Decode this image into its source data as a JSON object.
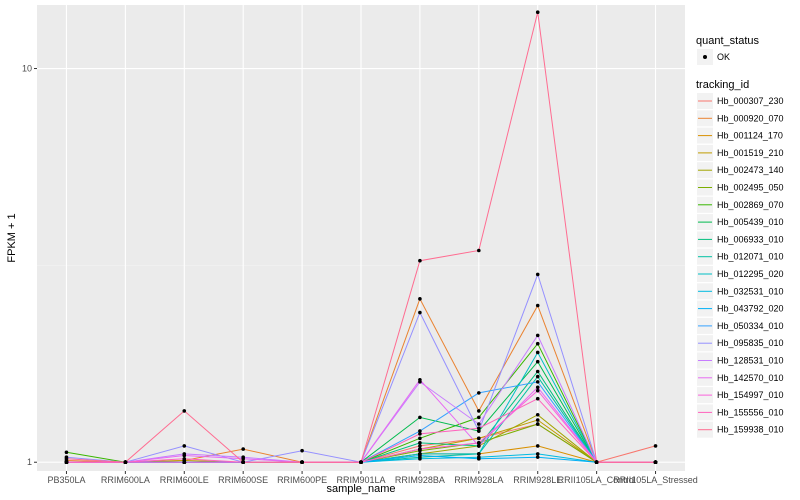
{
  "chart_data": {
    "type": "line",
    "xlabel": "sample_name",
    "ylabel": "FPKM + 1",
    "y_scale": "log",
    "ylim": [
      0.95,
      14.5
    ],
    "y_ticks": [
      1,
      10
    ],
    "y_tick_labels": [
      "1",
      "10"
    ],
    "categories": [
      "PB350LA",
      "RRIM600LA",
      "RRIM600LE",
      "RRIM600SE",
      "RRIM600PE",
      "RRIM901LA",
      "RRIM928BA",
      "RRIM928LA",
      "RRIM928LE",
      "RRII105LA_Control",
      "RRII105LA_Stressed"
    ],
    "grid": true,
    "legend": {
      "position": "right",
      "point_title": "quant_status",
      "point_entries": [
        "OK"
      ],
      "line_title": "tracking_id"
    },
    "series": [
      {
        "name": "Hb_000307_230",
        "color": "#F8766D",
        "values": [
          1.0,
          1.0,
          1.0,
          1.0,
          1.0,
          1.0,
          1.1,
          1.15,
          1.25,
          1.0,
          1.1
        ]
      },
      {
        "name": "Hb_000920_070",
        "color": "#EA8331",
        "values": [
          1.01,
          1.0,
          1.01,
          1.08,
          1.0,
          1.0,
          2.6,
          1.35,
          2.5,
          1.0,
          1.0
        ]
      },
      {
        "name": "Hb_001124_170",
        "color": "#D89000",
        "values": [
          1.0,
          1.0,
          1.0,
          1.0,
          1.0,
          1.0,
          1.05,
          1.05,
          1.1,
          1.0,
          1.0
        ]
      },
      {
        "name": "Hb_001519_210",
        "color": "#C09B00",
        "values": [
          1.0,
          1.0,
          1.01,
          1.0,
          1.0,
          1.0,
          1.08,
          1.15,
          1.28,
          1.0,
          1.0
        ]
      },
      {
        "name": "Hb_002473_140",
        "color": "#A3A500",
        "values": [
          1.0,
          1.0,
          1.0,
          1.0,
          1.0,
          1.0,
          1.05,
          1.1,
          1.32,
          1.0,
          1.0
        ]
      },
      {
        "name": "Hb_002495_050",
        "color": "#7CAE00",
        "values": [
          1.0,
          1.0,
          1.0,
          1.0,
          1.0,
          1.0,
          1.07,
          1.12,
          1.25,
          1.0,
          1.0
        ]
      },
      {
        "name": "Hb_002869_070",
        "color": "#39B600",
        "values": [
          1.06,
          1.0,
          1.0,
          1.0,
          1.0,
          1.0,
          1.15,
          1.3,
          2.0,
          1.0,
          1.0
        ]
      },
      {
        "name": "Hb_005439_010",
        "color": "#00BB4E",
        "values": [
          1.0,
          1.0,
          1.0,
          1.0,
          1.0,
          1.0,
          1.3,
          1.2,
          1.8,
          1.0,
          1.0
        ]
      },
      {
        "name": "Hb_006933_010",
        "color": "#00BF7D",
        "values": [
          1.0,
          1.0,
          1.0,
          1.0,
          1.0,
          1.0,
          1.12,
          1.1,
          1.7,
          1.0,
          1.0
        ]
      },
      {
        "name": "Hb_012071_010",
        "color": "#00C1A3",
        "values": [
          1.0,
          1.0,
          1.0,
          1.0,
          1.0,
          1.0,
          1.03,
          1.05,
          1.65,
          1.0,
          1.0
        ]
      },
      {
        "name": "Hb_012295_020",
        "color": "#00BFC4",
        "values": [
          1.0,
          1.0,
          1.0,
          1.0,
          1.0,
          1.0,
          1.05,
          1.05,
          1.9,
          1.0,
          1.0
        ]
      },
      {
        "name": "Hb_032531_010",
        "color": "#00BAE0",
        "values": [
          1.0,
          1.0,
          1.0,
          1.0,
          1.0,
          1.0,
          1.02,
          1.03,
          1.05,
          1.0,
          1.0
        ]
      },
      {
        "name": "Hb_043792_020",
        "color": "#00B0F6",
        "values": [
          1.0,
          1.0,
          1.0,
          1.0,
          1.0,
          1.0,
          1.04,
          1.02,
          1.03,
          1.0,
          1.0
        ]
      },
      {
        "name": "Hb_050334_010",
        "color": "#35A2FF",
        "values": [
          1.0,
          1.0,
          1.0,
          1.0,
          1.0,
          1.0,
          1.2,
          1.5,
          1.6,
          1.0,
          1.0
        ]
      },
      {
        "name": "Hb_095835_010",
        "color": "#9590FF",
        "values": [
          1.03,
          1.0,
          1.1,
          1.0,
          1.07,
          1.0,
          2.4,
          1.2,
          3.0,
          1.0,
          1.0
        ]
      },
      {
        "name": "Hb_128531_010",
        "color": "#C77CFF",
        "values": [
          1.0,
          1.0,
          1.05,
          1.03,
          1.0,
          1.0,
          1.6,
          1.25,
          2.1,
          1.0,
          1.0
        ]
      },
      {
        "name": "Hb_142570_010",
        "color": "#E76BF3",
        "values": [
          1.0,
          1.0,
          1.04,
          1.02,
          1.0,
          1.0,
          1.62,
          1.1,
          1.55,
          1.0,
          1.0
        ]
      },
      {
        "name": "Hb_154997_010",
        "color": "#FA62DB",
        "values": [
          1.0,
          1.0,
          1.0,
          1.0,
          1.0,
          1.0,
          1.08,
          1.12,
          1.52,
          1.0,
          1.0
        ]
      },
      {
        "name": "Hb_155556_010",
        "color": "#FF62BC",
        "values": [
          1.0,
          1.0,
          1.02,
          1.0,
          1.0,
          1.0,
          1.18,
          1.22,
          1.45,
          1.0,
          1.0
        ]
      },
      {
        "name": "Hb_159938_010",
        "color": "#FF6C91",
        "values": [
          1.02,
          1.0,
          1.35,
          1.0,
          1.0,
          1.0,
          3.25,
          3.45,
          13.9,
          1.0,
          1.0
        ]
      }
    ]
  }
}
